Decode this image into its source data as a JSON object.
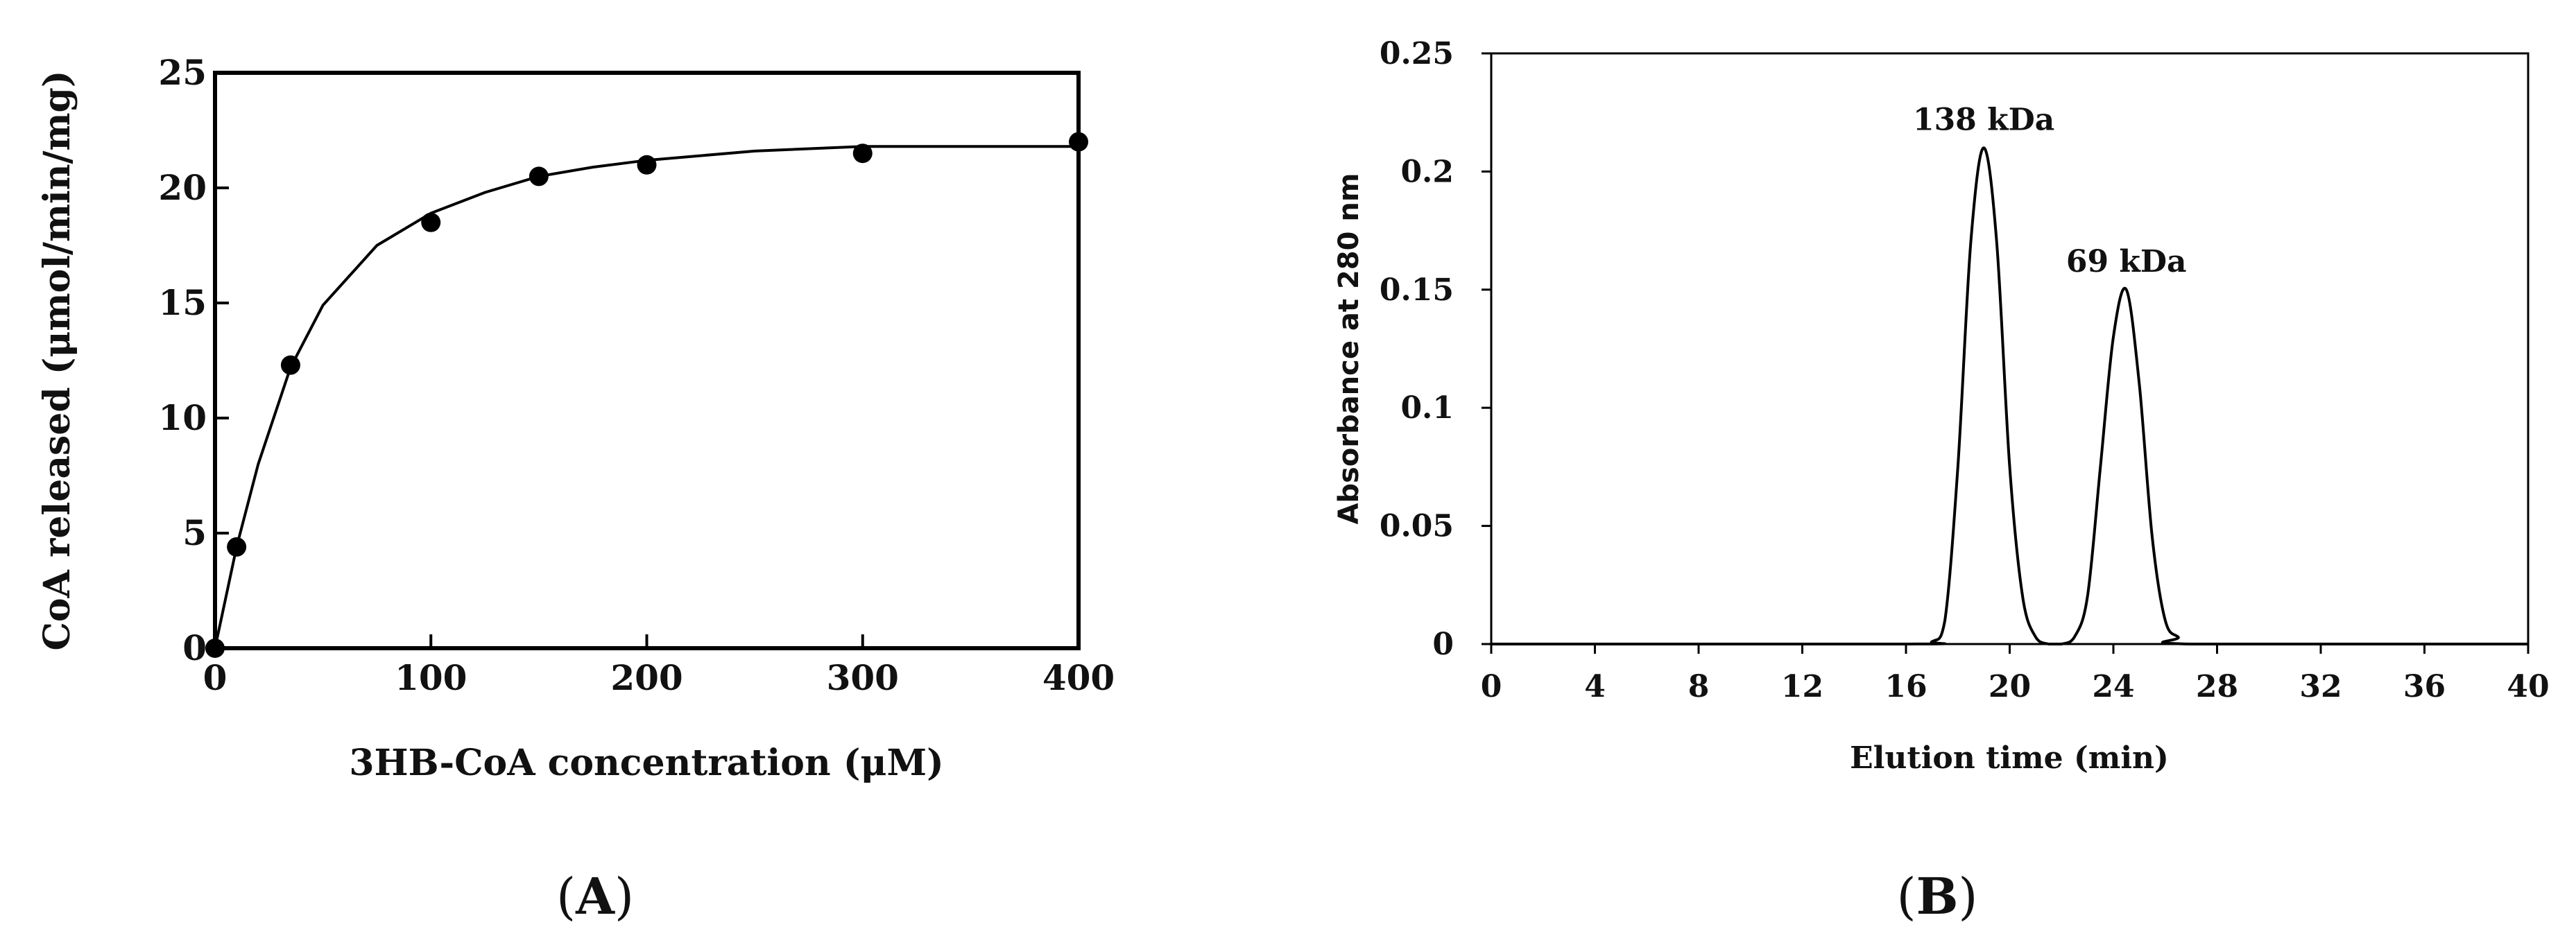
{
  "chart_data": [
    {
      "panel": "(A)",
      "panel_letter": "A",
      "type": "scatter",
      "xlabel": "3HB-CoA concentration (μM)",
      "ylabel": "CoA released (μmol/min/mg)",
      "xlim": [
        0,
        400
      ],
      "ylim": [
        0,
        25
      ],
      "xticks": [
        0,
        100,
        200,
        300,
        400
      ],
      "yticks": [
        0,
        5,
        10,
        15,
        20,
        25
      ],
      "grid": false,
      "series": [
        {
          "x": [
            0,
            10,
            35,
            100,
            150,
            200,
            300,
            400
          ],
          "y": [
            0,
            4.4,
            12.3,
            18.5,
            20.5,
            21.0,
            21.5,
            22.0
          ]
        }
      ],
      "fit_curve": {
        "x": [
          0,
          10,
          20,
          35,
          50,
          75,
          100,
          125,
          150,
          175,
          200,
          250,
          300,
          350,
          400
        ],
        "y": [
          0,
          4.4,
          8.0,
          12.2,
          14.9,
          17.5,
          18.9,
          19.8,
          20.5,
          20.9,
          21.2,
          21.6,
          21.8,
          21.8,
          21.8
        ]
      }
    },
    {
      "panel": "(B)",
      "panel_letter": "B",
      "type": "line",
      "xlabel": "Elution time (min)",
      "ylabel": "Absorbance at 280 nm",
      "xlim": [
        0,
        40
      ],
      "ylim": [
        0,
        0.25
      ],
      "xticks": [
        0,
        4,
        8,
        12,
        16,
        20,
        24,
        28,
        32,
        36,
        40
      ],
      "ytick_labels": [
        "0",
        "0.05",
        "0.1",
        "0.15",
        "0.2",
        "0.25"
      ],
      "yticks": [
        0,
        0.05,
        0.1,
        0.15,
        0.2,
        0.25
      ],
      "grid": false,
      "series": [
        {
          "x": [
            0,
            16,
            17,
            17.5,
            18,
            18.5,
            19,
            19.5,
            20,
            20.5,
            21,
            21.5,
            22,
            22.5,
            23,
            23.5,
            24,
            24.5,
            25,
            25.5,
            26,
            26.5,
            27,
            40
          ],
          "y": [
            0,
            0,
            0.001,
            0.01,
            0.075,
            0.17,
            0.21,
            0.17,
            0.075,
            0.02,
            0.003,
            0,
            0,
            0.003,
            0.02,
            0.075,
            0.13,
            0.15,
            0.11,
            0.045,
            0.01,
            0.003,
            0,
            0
          ]
        }
      ],
      "annotations": [
        {
          "text": "138 kDa",
          "x": 19.0,
          "y": 0.21
        },
        {
          "text": "69 kDa",
          "x": 24.5,
          "y": 0.15
        }
      ]
    }
  ]
}
